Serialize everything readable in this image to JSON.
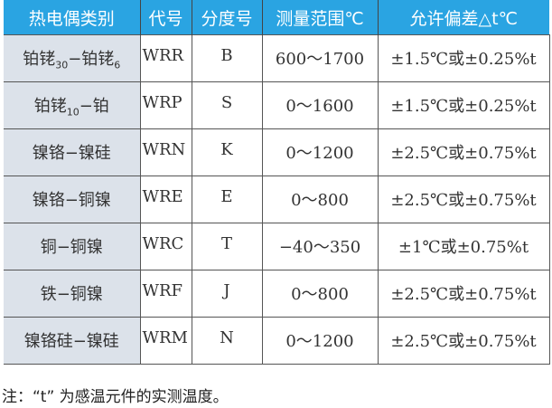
{
  "headers": [
    "热电偶类别",
    "代号",
    "分度号",
    "测量范围℃",
    "允许偏差△t℃"
  ],
  "rows": [
    {
      "type_main": "铂铑",
      "sub1": "30",
      "type_mid": "−铂铑",
      "sub2": "6",
      "code": "WRR",
      "grad": "B",
      "range": "600～1700",
      "tol": "±1.5℃或±0.25%t"
    },
    {
      "type_main": "铂铑",
      "sub1": "10",
      "type_mid": "−铂",
      "sub2": "",
      "code": "WRP",
      "grad": "S",
      "range": "0～1600",
      "tol": "±1.5℃或±0.25%t"
    },
    {
      "type_main": "镍铬−镍硅",
      "code": "WRN",
      "grad": "K",
      "range": "0～1200",
      "tol": "±2.5℃或±0.75%t"
    },
    {
      "type_main": "镍铬−铜镍",
      "code": "WRE",
      "grad": "E",
      "range": "0～800",
      "tol": "±2.5℃或±0.75%t"
    },
    {
      "type_main": "铜−铜镍",
      "code": "WRC",
      "grad": "T",
      "range": "−40～350",
      "tol": "±1℃或±0.75%t"
    },
    {
      "type_main": "铁−铜镍",
      "code": "WRF",
      "grad": "J",
      "range": "0～800",
      "tol": "±2.5℃或±0.75%t"
    },
    {
      "type_main": "镍铬硅−镍硅",
      "code": "WRM",
      "grad": "N",
      "range": "0～1200",
      "tol": "±2.5℃或±0.75%t"
    }
  ],
  "note": "注：“t” 为感温元件的实测温度。",
  "colors": {
    "header_bg": "#2aa4e2",
    "first_col_bg": "#dce2ea"
  }
}
